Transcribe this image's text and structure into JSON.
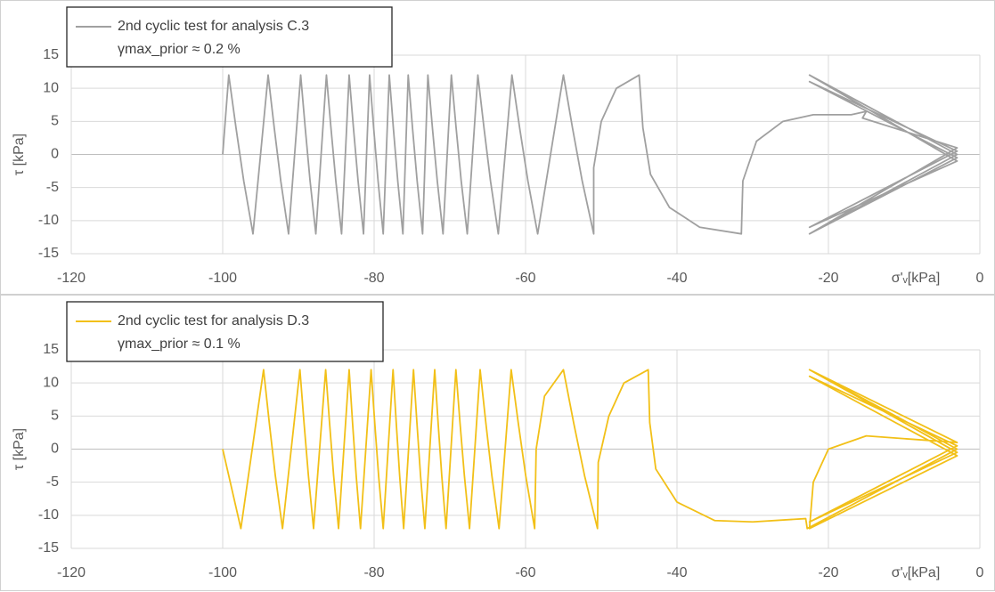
{
  "chart_data": [
    {
      "type": "line",
      "y_label": "τ [kPa]",
      "x_label": "σ'ᵥ[kPa]",
      "annotation": "γmax_prior ≈ 0.2 %",
      "xlim": [
        -120,
        0
      ],
      "xticks": [
        -120,
        -100,
        -80,
        -60,
        -40,
        -20,
        0
      ],
      "ylim": [
        -15,
        15
      ],
      "yticks": [
        -15,
        -10,
        -5,
        0,
        5,
        10,
        15
      ],
      "grid": true,
      "series": [
        {
          "name": "2nd cyclic test for analysis C.3",
          "color": "#a0a0a0",
          "x": [
            -100,
            -99.2,
            -98.24,
            -97.22,
            -96,
            -94,
            -93.19,
            -92.33,
            -91.3,
            -89.7,
            -89.1,
            -88.46,
            -87.7,
            -86.3,
            -85.7,
            -85.06,
            -84.3,
            -83.3,
            -82.73,
            -82.12,
            -81.4,
            -80.6,
            -80.06,
            -79.48,
            -78.8,
            -78,
            -77.46,
            -76.88,
            -76.2,
            -75.5,
            -74.93,
            -74.32,
            -73.6,
            -72.9,
            -72.3,
            -71.66,
            -70.9,
            -69.8,
            -69.17,
            -68.5,
            -67.7,
            -66.3,
            -65.49,
            -64.63,
            -63.6,
            -61.8,
            -60.78,
            -59.69,
            -58.4,
            -55,
            -53.8,
            -52.52,
            -51,
            -51,
            -50,
            -48,
            -45,
            -44.5,
            -43.5,
            -41,
            -37,
            -31.5,
            -31.3,
            -29.5,
            -26,
            -22,
            -17,
            -15,
            -15.5,
            -3,
            -22.5,
            -3,
            -22.5,
            -3,
            -22.5,
            -3,
            -22.5,
            -3,
            -22.5,
            -3,
            -22.5
          ],
          "values": [
            0,
            12,
            4,
            -4,
            -12,
            12,
            4,
            -4,
            -12,
            12,
            4,
            -4,
            -12,
            12,
            4,
            -4,
            -12,
            12,
            4,
            -4,
            -12,
            12,
            4,
            -4,
            -12,
            12,
            4,
            -4,
            -12,
            12,
            4,
            -4,
            -12,
            12,
            4,
            -4,
            -12,
            12,
            4,
            -4,
            -12,
            12,
            4,
            -4,
            -12,
            12,
            4,
            -4,
            -12,
            12,
            4,
            -4,
            -12,
            -2,
            5,
            10,
            12,
            4,
            -3,
            -8,
            -11,
            -12,
            -4,
            2,
            5,
            6,
            6,
            6.5,
            5.5,
            1,
            -12,
            0,
            12,
            -1,
            -11,
            0.5,
            11,
            -0.5,
            -12,
            0,
            12
          ]
        }
      ]
    },
    {
      "type": "line",
      "y_label": "τ [kPa]",
      "x_label": "σ'ᵥ[kPa]",
      "annotation": "γmax_prior ≈ 0.1 %",
      "xlim": [
        -120,
        0
      ],
      "xticks": [
        -120,
        -100,
        -80,
        -60,
        -40,
        -20,
        0
      ],
      "ylim": [
        -15,
        15
      ],
      "yticks": [
        -15,
        -10,
        -5,
        0,
        5,
        10,
        15
      ],
      "grid": true,
      "series": [
        {
          "name": "2nd cyclic test for analysis D.3",
          "color": "#f2c018",
          "x": [
            -100,
            -97.6,
            -94.6,
            -93.85,
            -93.05,
            -92.1,
            -89.8,
            -89.26,
            -88.68,
            -88,
            -86.4,
            -85.89,
            -85.35,
            -84.7,
            -83.3,
            -82.85,
            -82.37,
            -81.8,
            -80.4,
            -79.92,
            -79.41,
            -78.8,
            -77.5,
            -77.08,
            -76.63,
            -76.1,
            -74.8,
            -74.35,
            -73.87,
            -73.3,
            -72,
            -71.55,
            -71.07,
            -70.5,
            -69.2,
            -68.66,
            -68.08,
            -67.4,
            -66,
            -65.25,
            -64.45,
            -63.5,
            -61.9,
            -60.97,
            -59.98,
            -58.8,
            -58.6,
            -57.5,
            -55,
            -53.65,
            -52.21,
            -50.5,
            -50.4,
            -49,
            -47,
            -43.8,
            -43.6,
            -42.8,
            -40,
            -35,
            -30,
            -23,
            -22.8,
            -3,
            -22.5,
            -3,
            -22.5,
            -3,
            -22.5,
            -3,
            -22.5,
            -22,
            -20,
            -15,
            -3,
            -22.5
          ],
          "values": [
            0,
            -12,
            12,
            4,
            -4,
            -12,
            12,
            4,
            -4,
            -12,
            12,
            4,
            -4,
            -12,
            12,
            4,
            -4,
            -12,
            12,
            4,
            -4,
            -12,
            12,
            4,
            -4,
            -12,
            12,
            4,
            -4,
            -12,
            12,
            4,
            -4,
            -12,
            12,
            4,
            -4,
            -12,
            12,
            4,
            -4,
            -12,
            12,
            4,
            -4,
            -12,
            0,
            8,
            12,
            4,
            -4,
            -12,
            -2,
            5,
            10,
            12,
            4,
            -3,
            -8,
            -10.8,
            -11,
            -10.5,
            -12,
            0,
            12,
            -0.5,
            -11,
            0.5,
            11,
            -1,
            -12,
            -5,
            0,
            2,
            1,
            12
          ]
        }
      ]
    }
  ]
}
